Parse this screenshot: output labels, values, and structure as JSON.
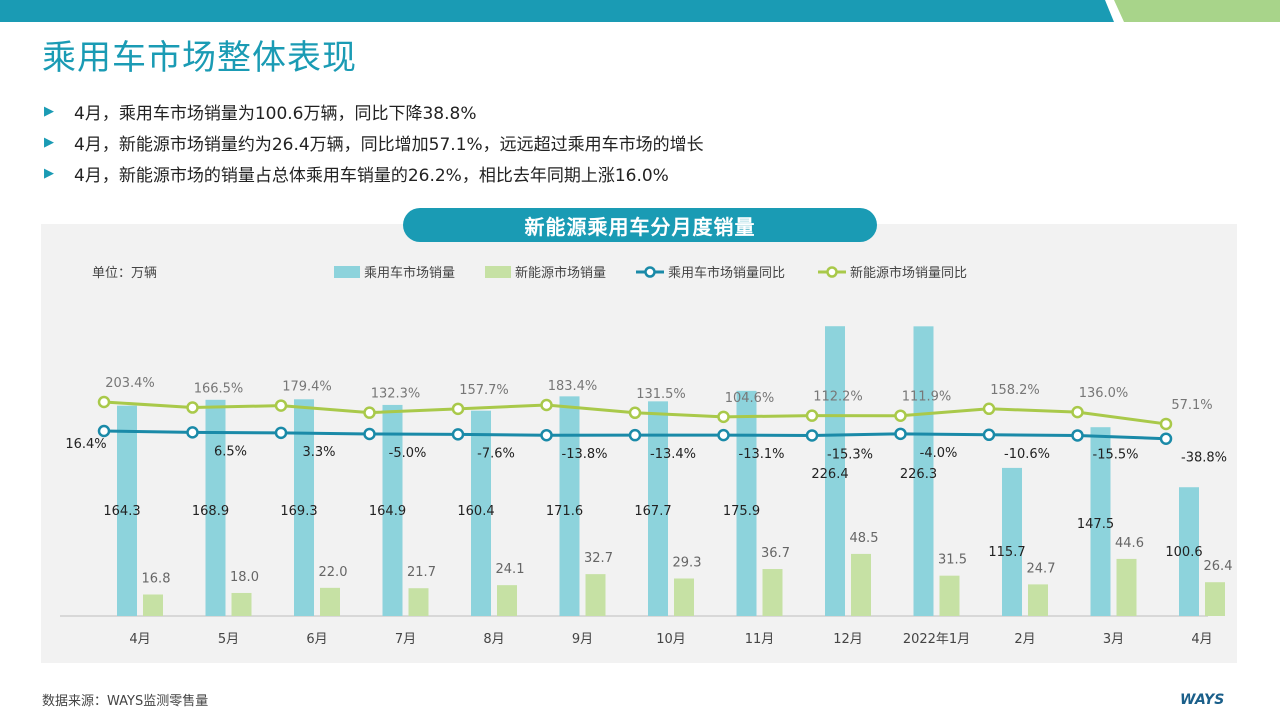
{
  "page": {
    "title": "乘用车市场整体表现",
    "bullets": [
      "4月，乘用车市场销量为100.6万辆，同比下降38.8%",
      "4月，新能源市场销量约为26.4万辆，同比增加57.1%，远远超过乘用车市场的增长",
      "4月，新能源市场的销量占总体乘用车销量的26.2%，相比去年同期上涨16.0%"
    ],
    "source": "数据来源：WAYS监测零售量",
    "logo": "WAYS"
  },
  "colors": {
    "accent": "#1a9bb4",
    "bar_total": "#8dd3dc",
    "bar_nev": "#c6e1a4",
    "line_total": "#1a8aa8",
    "line_nev": "#a9c94a",
    "topbar_green": "#a8d48a"
  },
  "chart_data": {
    "type": "bar",
    "title": "新能源乘用车分月度销量",
    "unit_label": "单位：万辆",
    "categories": [
      "4月",
      "5月",
      "6月",
      "7月",
      "8月",
      "9月",
      "10月",
      "11月",
      "12月",
      "2022年1月",
      "2月",
      "3月",
      "4月"
    ],
    "series": [
      {
        "name": "乘用车市场销量",
        "kind": "bar",
        "values": [
          164.3,
          168.9,
          169.3,
          164.9,
          160.4,
          171.6,
          167.7,
          175.9,
          226.4,
          226.3,
          115.7,
          147.5,
          100.6
        ]
      },
      {
        "name": "新能源市场销量",
        "kind": "bar",
        "values": [
          16.8,
          18.0,
          22.0,
          21.7,
          24.1,
          32.7,
          29.3,
          36.7,
          48.5,
          31.5,
          24.7,
          44.6,
          26.4
        ]
      },
      {
        "name": "乘用车市场销量同比",
        "kind": "line",
        "values": [
          16.4,
          6.5,
          3.3,
          -5.0,
          -7.6,
          -13.8,
          -13.4,
          -13.1,
          -15.3,
          -4.0,
          -10.6,
          -15.5,
          -38.8
        ],
        "labels": [
          "16.4%",
          "6.5%",
          "3.3%",
          "-5.0%",
          "-7.6%",
          "-13.8%",
          "-13.4%",
          "-13.1%",
          "-15.3%",
          "-4.0%",
          "-10.6%",
          "-15.5%",
          "-38.8%"
        ]
      },
      {
        "name": "新能源市场销量同比",
        "kind": "line",
        "values": [
          203.4,
          166.5,
          179.4,
          132.3,
          157.7,
          183.4,
          131.5,
          104.6,
          112.2,
          111.9,
          158.2,
          136.0,
          57.1
        ],
        "labels": [
          "203.4%",
          "166.5%",
          "179.4%",
          "132.3%",
          "157.7%",
          "183.4%",
          "131.5%",
          "104.6%",
          "112.2%",
          "111.9%",
          "158.2%",
          "136.0%",
          "57.1%"
        ]
      }
    ],
    "bar_labels_total": [
      "164.3",
      "168.9",
      "169.3",
      "164.9",
      "160.4",
      "171.6",
      "167.7",
      "175.9",
      "226.4",
      "226.3",
      "115.7",
      "147.5",
      "100.6"
    ],
    "bar_labels_nev": [
      "16.8",
      "18.0",
      "22.0",
      "21.7",
      "24.1",
      "32.7",
      "29.3",
      "36.7",
      "48.5",
      "31.5",
      "24.7",
      "44.6",
      "26.4"
    ],
    "legend_position": "top"
  }
}
